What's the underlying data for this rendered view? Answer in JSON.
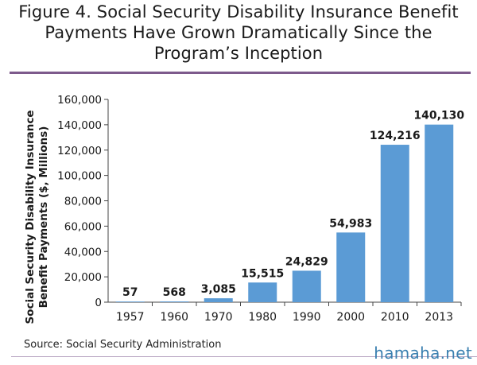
{
  "figure": {
    "title_line1": "Figure 4. Social Security Disability Insurance Benefit",
    "title_line2": "Payments Have Grown Dramatically Since the",
    "title_line3": "Program’s Inception",
    "source": "Source: Social Security Administration",
    "watermark": "hamaha.net",
    "accent_color": "#7d5a8c",
    "bar_color": "#5b9bd5"
  },
  "chart_data": {
    "type": "bar",
    "categories": [
      "1957",
      "1960",
      "1970",
      "1980",
      "1990",
      "2000",
      "2010",
      "2013"
    ],
    "values": [
      57,
      568,
      3085,
      15515,
      24829,
      54983,
      124216,
      140130
    ],
    "value_labels": [
      "57",
      "568",
      "3,085",
      "15,515",
      "24,829",
      "54,983",
      "124,216",
      "140,130"
    ],
    "ylabel_line1": "Social Security Disability Insurance",
    "ylabel_line2": "Benefit Payments ($, Millions)",
    "xlabel": "",
    "ylim": [
      0,
      160000
    ],
    "yticks": [
      0,
      20000,
      40000,
      60000,
      80000,
      100000,
      120000,
      140000,
      160000
    ],
    "ytick_labels": [
      "0",
      "20,000",
      "40,000",
      "60,000",
      "80,000",
      "100,000",
      "120,000",
      "140,000",
      "160,000"
    ],
    "grid": false,
    "legend": "none"
  }
}
